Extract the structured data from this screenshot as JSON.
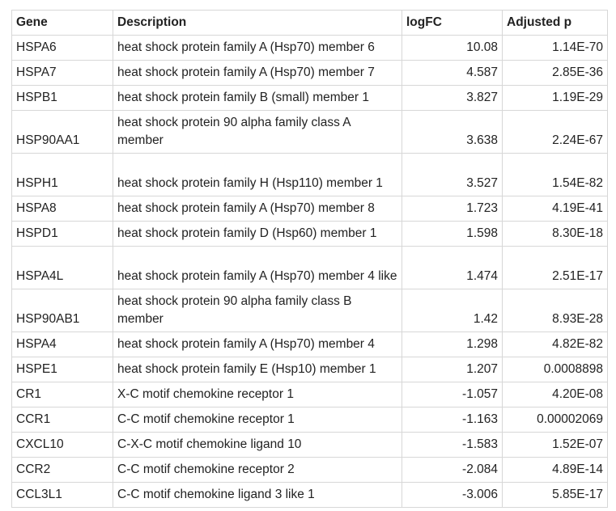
{
  "table": {
    "headers": {
      "gene": "Gene",
      "description": "Description",
      "logfc": "logFC",
      "adjusted_p": "Adjusted p"
    },
    "rows": [
      {
        "gene": "HSPA6",
        "description": "heat shock protein family A (Hsp70) member 6",
        "logfc": "10.08",
        "adjusted_p": "1.14E-70"
      },
      {
        "gene": "HSPA7",
        "description": "heat shock protein family A (Hsp70) member 7",
        "logfc": "4.587",
        "adjusted_p": "2.85E-36"
      },
      {
        "gene": "HSPB1",
        "description": "heat shock protein family B (small) member 1",
        "logfc": "3.827",
        "adjusted_p": "1.19E-29"
      },
      {
        "gene": "HSP90AA1",
        "description": "heat shock protein 90 alpha family class A member",
        "logfc": "3.638",
        "adjusted_p": "2.24E-67"
      },
      {
        "gene": "HSPH1",
        "description": "heat shock protein family H (Hsp110) member 1",
        "logfc": "3.527",
        "adjusted_p": "1.54E-82"
      },
      {
        "gene": "HSPA8",
        "description": "heat shock protein family A (Hsp70) member 8",
        "logfc": "1.723",
        "adjusted_p": "4.19E-41"
      },
      {
        "gene": "HSPD1",
        "description": "heat shock protein family D (Hsp60) member 1",
        "logfc": "1.598",
        "adjusted_p": "8.30E-18"
      },
      {
        "gene": "HSPA4L",
        "description": "heat shock protein family A (Hsp70) member 4 like",
        "logfc": "1.474",
        "adjusted_p": "2.51E-17"
      },
      {
        "gene": "HSP90AB1",
        "description": "heat shock protein 90 alpha family class B member",
        "logfc": "1.42",
        "adjusted_p": "8.93E-28"
      },
      {
        "gene": "HSPA4",
        "description": "heat shock protein family A (Hsp70) member 4",
        "logfc": "1.298",
        "adjusted_p": "4.82E-82"
      },
      {
        "gene": "HSPE1",
        "description": "heat shock protein family E (Hsp10) member 1",
        "logfc": "1.207",
        "adjusted_p": "0.0008898"
      },
      {
        "gene": "CR1",
        "description": "X-C motif chemokine receptor 1",
        "logfc": "-1.057",
        "adjusted_p": "4.20E-08"
      },
      {
        "gene": "CCR1",
        "description": "C-C motif chemokine receptor 1",
        "logfc": "-1.163",
        "adjusted_p": "0.00002069"
      },
      {
        "gene": "CXCL10",
        "description": "C-X-C motif chemokine ligand 10",
        "logfc": "-1.583",
        "adjusted_p": "1.52E-07"
      },
      {
        "gene": "CCR2",
        "description": "C-C motif chemokine receptor 2",
        "logfc": "-2.084",
        "adjusted_p": "4.89E-14"
      },
      {
        "gene": "CCL3L1",
        "description": "C-C motif chemokine ligand 3 like 1",
        "logfc": "-3.006",
        "adjusted_p": "5.85E-17"
      }
    ]
  }
}
